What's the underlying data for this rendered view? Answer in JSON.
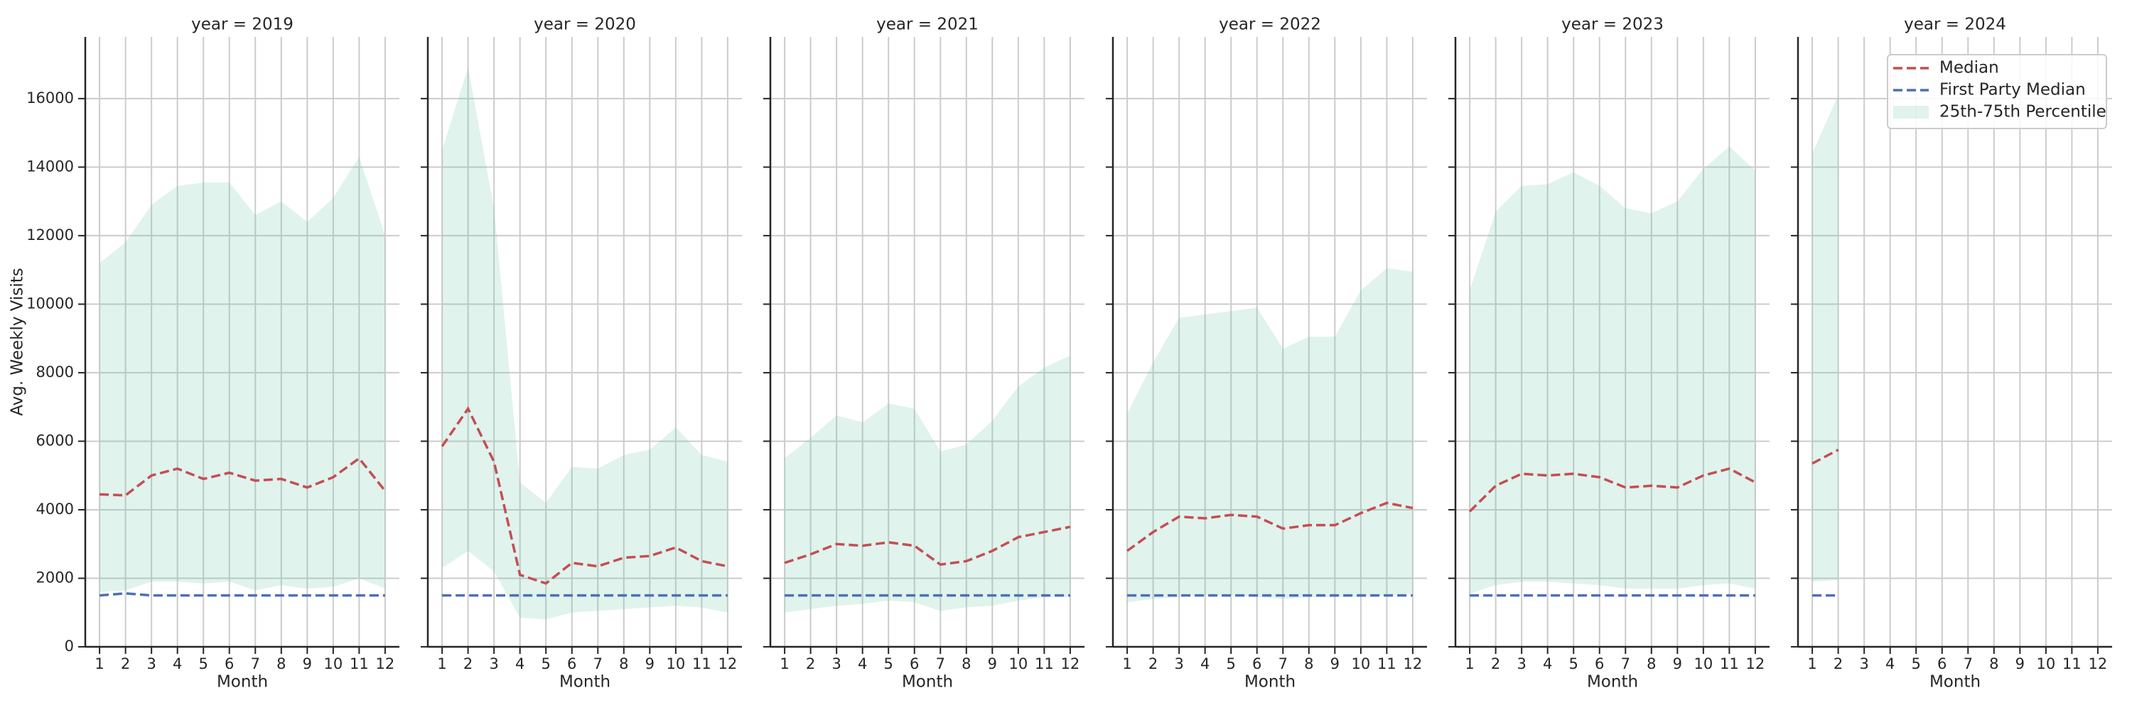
{
  "chart_data": [
    {
      "type": "line",
      "title": "year = 2019",
      "xlabel": "Month",
      "ylabel": "Avg. Weekly Visits",
      "x": [
        1,
        2,
        3,
        4,
        5,
        6,
        7,
        8,
        9,
        10,
        11,
        12
      ],
      "xlim": [
        0.45,
        12.55
      ],
      "xticks": [
        1,
        2,
        3,
        4,
        5,
        6,
        7,
        8,
        9,
        10,
        11,
        12
      ],
      "ylim": [
        0,
        17800
      ],
      "yticks": [
        0,
        2000,
        4000,
        6000,
        8000,
        10000,
        12000,
        14000,
        16000
      ],
      "grid": true,
      "series": [
        {
          "name": "Median",
          "color": "#c44e52",
          "values": [
            4450,
            4420,
            5000,
            5200,
            4900,
            5080,
            4850,
            4900,
            4650,
            4950,
            5500,
            4550
          ]
        },
        {
          "name": "First Party Median",
          "color": "#4c72b0",
          "values": [
            1500,
            1560,
            1500,
            1500,
            1500,
            1500,
            1500,
            1500,
            1500,
            1500,
            1500,
            1500
          ]
        },
        {
          "name": "25th-75th Percentile",
          "color": "#66c2a5",
          "type": "band",
          "lower": [
            1600,
            1650,
            1900,
            1900,
            1850,
            1900,
            1650,
            1800,
            1700,
            1750,
            2000,
            1700
          ],
          "upper": [
            11200,
            11800,
            12900,
            13450,
            13550,
            13550,
            12600,
            13000,
            12400,
            13100,
            14300,
            12000
          ]
        }
      ]
    },
    {
      "type": "line",
      "title": "year = 2020",
      "xlabel": "Month",
      "x": [
        1,
        2,
        3,
        4,
        5,
        6,
        7,
        8,
        9,
        10,
        11,
        12
      ],
      "xlim": [
        0.45,
        12.55
      ],
      "xticks": [
        1,
        2,
        3,
        4,
        5,
        6,
        7,
        8,
        9,
        10,
        11,
        12
      ],
      "ylim": [
        0,
        17800
      ],
      "yticks": [
        0,
        2000,
        4000,
        6000,
        8000,
        10000,
        12000,
        14000,
        16000
      ],
      "grid": true,
      "series": [
        {
          "name": "Median",
          "color": "#c44e52",
          "values": [
            5850,
            6950,
            5400,
            2100,
            1850,
            2450,
            2350,
            2600,
            2650,
            2900,
            2500,
            2350
          ]
        },
        {
          "name": "First Party Median",
          "color": "#4c72b0",
          "values": [
            1500,
            1500,
            1500,
            1500,
            1500,
            1500,
            1500,
            1500,
            1500,
            1500,
            1500,
            1500
          ]
        },
        {
          "name": "25th-75th Percentile",
          "color": "#66c2a5",
          "type": "band",
          "lower": [
            2300,
            2800,
            2200,
            850,
            800,
            1000,
            1050,
            1100,
            1150,
            1200,
            1150,
            1000
          ],
          "upper": [
            14500,
            16900,
            12800,
            4800,
            4200,
            5250,
            5200,
            5600,
            5750,
            6400,
            5600,
            5400
          ]
        }
      ]
    },
    {
      "type": "line",
      "title": "year = 2021",
      "xlabel": "Month",
      "x": [
        1,
        2,
        3,
        4,
        5,
        6,
        7,
        8,
        9,
        10,
        11,
        12
      ],
      "xlim": [
        0.45,
        12.55
      ],
      "xticks": [
        1,
        2,
        3,
        4,
        5,
        6,
        7,
        8,
        9,
        10,
        11,
        12
      ],
      "ylim": [
        0,
        17800
      ],
      "yticks": [
        0,
        2000,
        4000,
        6000,
        8000,
        10000,
        12000,
        14000,
        16000
      ],
      "grid": true,
      "series": [
        {
          "name": "Median",
          "color": "#c44e52",
          "values": [
            2450,
            2700,
            3000,
            2950,
            3050,
            2950,
            2400,
            2500,
            2800,
            3200,
            3350,
            3500
          ]
        },
        {
          "name": "First Party Median",
          "color": "#4c72b0",
          "values": [
            1500,
            1500,
            1500,
            1500,
            1500,
            1500,
            1500,
            1500,
            1500,
            1500,
            1500,
            1500
          ]
        },
        {
          "name": "25th-75th Percentile",
          "color": "#66c2a5",
          "type": "band",
          "lower": [
            1000,
            1100,
            1200,
            1250,
            1350,
            1300,
            1050,
            1150,
            1200,
            1350,
            1450,
            1450
          ],
          "upper": [
            5500,
            6100,
            6750,
            6550,
            7100,
            6950,
            5700,
            5900,
            6600,
            7600,
            8150,
            8500
          ]
        }
      ]
    },
    {
      "type": "line",
      "title": "year = 2022",
      "xlabel": "Month",
      "x": [
        1,
        2,
        3,
        4,
        5,
        6,
        7,
        8,
        9,
        10,
        11,
        12
      ],
      "xlim": [
        0.45,
        12.55
      ],
      "xticks": [
        1,
        2,
        3,
        4,
        5,
        6,
        7,
        8,
        9,
        10,
        11,
        12
      ],
      "ylim": [
        0,
        17800
      ],
      "yticks": [
        0,
        2000,
        4000,
        6000,
        8000,
        10000,
        12000,
        14000,
        16000
      ],
      "grid": true,
      "series": [
        {
          "name": "Median",
          "color": "#c44e52",
          "values": [
            2800,
            3350,
            3800,
            3750,
            3850,
            3800,
            3450,
            3550,
            3550,
            3900,
            4200,
            4050
          ]
        },
        {
          "name": "First Party Median",
          "color": "#4c72b0",
          "values": [
            1500,
            1500,
            1500,
            1500,
            1500,
            1500,
            1500,
            1500,
            1500,
            1500,
            1500,
            1500
          ]
        },
        {
          "name": "25th-75th Percentile",
          "color": "#66c2a5",
          "type": "band",
          "lower": [
            1300,
            1400,
            1450,
            1500,
            1500,
            1450,
            1400,
            1450,
            1450,
            1450,
            1500,
            1550
          ],
          "upper": [
            6800,
            8300,
            9600,
            9700,
            9800,
            9900,
            8700,
            9050,
            9050,
            10400,
            11050,
            10950
          ]
        }
      ]
    },
    {
      "type": "line",
      "title": "year = 2023",
      "xlabel": "Month",
      "x": [
        1,
        2,
        3,
        4,
        5,
        6,
        7,
        8,
        9,
        10,
        11,
        12
      ],
      "xlim": [
        0.45,
        12.55
      ],
      "xticks": [
        1,
        2,
        3,
        4,
        5,
        6,
        7,
        8,
        9,
        10,
        11,
        12
      ],
      "ylim": [
        0,
        17800
      ],
      "yticks": [
        0,
        2000,
        4000,
        6000,
        8000,
        10000,
        12000,
        14000,
        16000
      ],
      "grid": true,
      "series": [
        {
          "name": "Median",
          "color": "#c44e52",
          "values": [
            3950,
            4700,
            5050,
            5000,
            5050,
            4950,
            4650,
            4700,
            4650,
            5000,
            5200,
            4800
          ]
        },
        {
          "name": "First Party Median",
          "color": "#4c72b0",
          "values": [
            1500,
            1500,
            1500,
            1500,
            1500,
            1500,
            1500,
            1500,
            1500,
            1500,
            1500,
            1500
          ]
        },
        {
          "name": "25th-75th Percentile",
          "color": "#66c2a5",
          "type": "band",
          "lower": [
            1550,
            1800,
            1900,
            1900,
            1850,
            1800,
            1700,
            1700,
            1700,
            1800,
            1850,
            1700
          ],
          "upper": [
            10400,
            12700,
            13450,
            13500,
            13850,
            13450,
            12800,
            12650,
            13000,
            13950,
            14600,
            13900
          ]
        }
      ]
    },
    {
      "type": "line",
      "title": "year = 2024",
      "xlabel": "Month",
      "legend": "upper right",
      "x": [
        1,
        2,
        3,
        4,
        5,
        6,
        7,
        8,
        9,
        10,
        11,
        12
      ],
      "xlim": [
        0.45,
        12.55
      ],
      "xticks": [
        1,
        2,
        3,
        4,
        5,
        6,
        7,
        8,
        9,
        10,
        11,
        12
      ],
      "ylim": [
        0,
        17800
      ],
      "yticks": [
        0,
        2000,
        4000,
        6000,
        8000,
        10000,
        12000,
        14000,
        16000
      ],
      "grid": true,
      "series": [
        {
          "name": "Median",
          "color": "#c44e52",
          "values": [
            5350,
            5750,
            null,
            null,
            null,
            null,
            null,
            null,
            null,
            null,
            null,
            null
          ]
        },
        {
          "name": "First Party Median",
          "color": "#4c72b0",
          "values": [
            1500,
            1500,
            null,
            null,
            null,
            null,
            null,
            null,
            null,
            null,
            null,
            null
          ]
        },
        {
          "name": "25th-75th Percentile",
          "color": "#66c2a5",
          "type": "band",
          "lower": [
            1900,
            1950,
            null,
            null,
            null,
            null,
            null,
            null,
            null,
            null,
            null,
            null
          ],
          "upper": [
            14400,
            16100,
            null,
            null,
            null,
            null,
            null,
            null,
            null,
            null,
            null,
            null
          ]
        }
      ]
    }
  ]
}
